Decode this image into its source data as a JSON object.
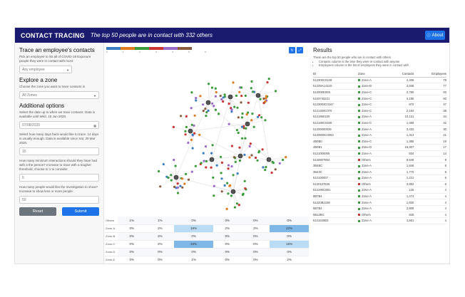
{
  "header": {
    "brand": "CONTACT TRACING",
    "tagline": "The top 50 people are in contact with 332 others",
    "about_label": "About"
  },
  "sidebar": {
    "trace_title": "Trace an employee's contacts",
    "trace_help": "Pick an employee to list all of COVID-19 Exposure people they were in contact with most",
    "employee_placeholder": "Any employee",
    "zone_title": "Explore a zone",
    "zone_help": "Choose the zone you want to trace contacts in",
    "zone_value": "All Zones",
    "options_title": "Additional options",
    "date_help": "Select the date up to when we trace contacts. Data is available until Wed, 10 Jun 2020.",
    "date_value": "07/08/2020",
    "days_help": "Select how many days back would like to trace. 14 days is usually enough. Data is available since Sat, 29 Mar 2020.",
    "days_value": "15",
    "min_help": "How many minimum interactions should they have had with a the person? Increase to trace with a tougher threshold, choose to 1 to consider.",
    "min_value": "5",
    "people_help": "How many people would like the investigation to show? Increase to show less or more people.",
    "people_value": "50",
    "reset_label": "Reset",
    "submit_label": "Submit"
  },
  "center": {
    "legend_colors": [
      "#3a7ec2",
      "#e07b1c",
      "#3a9b3a",
      "#cc3333",
      "#9a6ac9",
      "#8a5a3c"
    ],
    "legend_ticks": [
      "0",
      "1",
      "2",
      "3",
      "4",
      "5",
      "6"
    ],
    "heatmap_rows": [
      {
        "label": "Others",
        "cells": [
          "1%",
          "1%",
          "0%",
          "0%",
          "0%",
          "0%"
        ],
        "highlight": [
          false,
          false,
          false,
          false,
          false,
          false
        ]
      },
      {
        "label": "Zone-A",
        "cells": [
          "0%",
          "2%",
          "16%",
          "2%",
          "2%",
          "22%"
        ],
        "highlight": [
          false,
          false,
          true,
          false,
          false,
          true
        ]
      },
      {
        "label": "Zone-B",
        "cells": [
          "0%",
          "2%",
          "0%",
          "0%",
          "0%",
          "0%"
        ],
        "highlight": [
          false,
          false,
          false,
          false,
          false,
          false
        ]
      },
      {
        "label": "Zone-C",
        "cells": [
          "0%",
          "2%",
          "34%",
          "0%",
          "0%",
          "16%"
        ],
        "highlight": [
          false,
          false,
          true,
          false,
          false,
          true
        ]
      },
      {
        "label": "Zone-D",
        "cells": [
          "0%",
          "0%",
          "0%",
          "0%",
          "0%",
          "0%"
        ],
        "highlight": [
          false,
          false,
          false,
          false,
          false,
          false
        ]
      },
      {
        "label": "Zone-E",
        "cells": [
          "0%",
          "0%",
          "1%",
          "0%",
          "0%",
          "2%"
        ],
        "highlight": [
          false,
          false,
          false,
          false,
          false,
          false
        ]
      }
    ]
  },
  "results": {
    "title": "Results",
    "desc": "These are the top 50 people who are in contact with others",
    "bullet1": "Contacts column is the time they were in contact with anyone",
    "bullet2": "Employees column is the list of employees they were in contact with",
    "columns": [
      "ID",
      "Zone",
      "Contacts",
      "Employees"
    ],
    "rows": [
      {
        "id": "512300C0109",
        "zone": "Zone-A",
        "zc": "#3a9b3a",
        "contacts": "4,406",
        "emp": "79"
      },
      {
        "id": "51239A1412S",
        "zone": "Zone-B",
        "zc": "#3a9b3a",
        "contacts": "3,836",
        "emp": "77"
      },
      {
        "id": "512000E00S",
        "zone": "Zone-C",
        "zc": "#3a9b3a",
        "contacts": "2,790",
        "emp": "00"
      },
      {
        "id": "5103740221",
        "zone": "Zone-C",
        "zc": "#3a9b3a",
        "contacts": "4,195",
        "emp": "60"
      },
      {
        "id": "5123003C0167",
        "zone": "Zone-C",
        "zc": "#3a9b3a",
        "contacts": "870",
        "emp": "47"
      },
      {
        "id": "5121400C070",
        "zone": "Zone-C",
        "zc": "#3a9b3a",
        "contacts": "2,184",
        "emp": "38"
      },
      {
        "id": "5121860100",
        "zone": "Zone-A",
        "zc": "#3a9b3a",
        "contacts": "10,131",
        "emp": "34"
      },
      {
        "id": "512190C0200",
        "zone": "Zone-C",
        "zc": "#3a9b3a",
        "contacts": "1,469",
        "emp": "32"
      },
      {
        "id": "51200000029",
        "zone": "Zone-A",
        "zc": "#3a9b3a",
        "contacts": "3,432",
        "emp": "30"
      },
      {
        "id": "5120600C0063",
        "zone": "Zone-A",
        "zc": "#3a9b3a",
        "contacts": "1,313",
        "emp": "21"
      },
      {
        "id": "4B0B0",
        "zone": "Zone-C",
        "zc": "#3a9b3a",
        "contacts": "1,385",
        "emp": "19"
      },
      {
        "id": "4B0B1",
        "zone": "Zone-D",
        "zc": "#3a9b3a",
        "contacts": "16,307",
        "emp": "17"
      },
      {
        "id": "5121000005",
        "zone": "Zone-A",
        "zc": "#3a9b3a",
        "contacts": "834",
        "emp": "14"
      },
      {
        "id": "5120807854",
        "zone": "Others",
        "zc": "#cc3333",
        "contacts": "8,646",
        "emp": "9"
      },
      {
        "id": "3B4BC",
        "zone": "Zone-A",
        "zc": "#3a9b3a",
        "contacts": "1,846",
        "emp": "8"
      },
      {
        "id": "3B43C",
        "zone": "Zone-A",
        "zc": "#3a9b3a",
        "contacts": "1,770",
        "emp": "8"
      },
      {
        "id": "512100007",
        "zone": "Zone-A",
        "zc": "#3a9b3a",
        "contacts": "1,241",
        "emp": "6"
      },
      {
        "id": "5120107626",
        "zone": "Others",
        "zc": "#cc3333",
        "contacts": "3,852",
        "emp": "6"
      },
      {
        "id": "512190C0B1",
        "zone": "Zone-A",
        "zc": "#3a9b3a",
        "contacts": "125",
        "emp": "4"
      },
      {
        "id": "9B7B4",
        "zone": "Zone-A",
        "zc": "#3a9b3a",
        "contacts": "1,474",
        "emp": "4"
      },
      {
        "id": "51220B2158",
        "zone": "Zone-A",
        "zc": "#3a9b3a",
        "contacts": "1,830",
        "emp": "4"
      },
      {
        "id": "5B7B4",
        "zone": "Zone-A",
        "zc": "#3a9b3a",
        "contacts": "2,806",
        "emp": "4"
      },
      {
        "id": "5B12BC",
        "zone": "Others",
        "zc": "#cc3333",
        "contacts": "845",
        "emp": "4"
      },
      {
        "id": "5121540B3",
        "zone": "Zone-A",
        "zc": "#3a9b3a",
        "contacts": "1,561",
        "emp": "4"
      }
    ]
  }
}
